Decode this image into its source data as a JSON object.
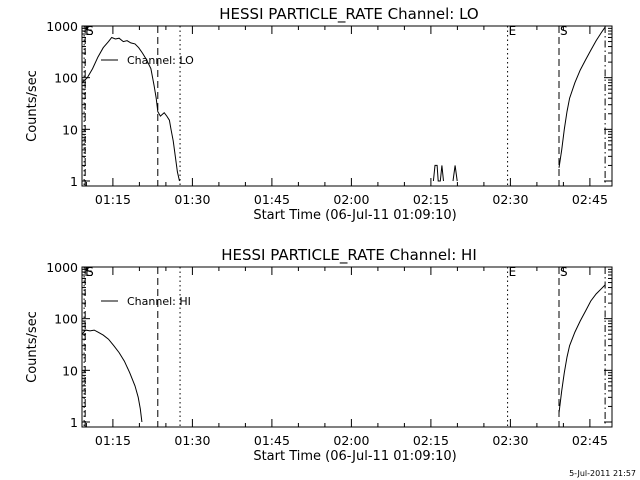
{
  "timestamp": "5-Jul-2011 21:57",
  "chart_data": [
    {
      "type": "line",
      "title": "HESSI PARTICLE_RATE Channel: LO",
      "xlabel": "Start Time (06-Jul-11 01:09:10)",
      "ylabel": "Counts/sec",
      "x_unit": "minutes after 01:09:10",
      "xlim": [
        0,
        100
      ],
      "ylim": [
        0.8,
        1000
      ],
      "yscale": "log",
      "x_ticks": [
        {
          "value": 5.83,
          "label": "01:15"
        },
        {
          "value": 20.83,
          "label": "01:30"
        },
        {
          "value": 35.83,
          "label": "01:45"
        },
        {
          "value": 50.83,
          "label": "02:00"
        },
        {
          "value": 65.83,
          "label": "02:15"
        },
        {
          "value": 80.83,
          "label": "02:30"
        },
        {
          "value": 95.83,
          "label": "02:45"
        }
      ],
      "y_ticks": [
        {
          "value": 1,
          "label": "1"
        },
        {
          "value": 10,
          "label": "10"
        },
        {
          "value": 100,
          "label": "100"
        },
        {
          "value": 1000,
          "label": "1000"
        }
      ],
      "grid": false,
      "legend": {
        "placement": "top-left",
        "entries": [
          "Channel: LO"
        ]
      },
      "markers": [
        {
          "x": 0.4,
          "style": "dotted",
          "label": "E"
        },
        {
          "x": 0.6,
          "style": "dashed",
          "label": "S"
        },
        {
          "x": 14.3,
          "style": "dashed",
          "label": ""
        },
        {
          "x": 18.5,
          "style": "dotted",
          "label": ""
        },
        {
          "x": 80.3,
          "style": "dotted",
          "label": "E"
        },
        {
          "x": 90.0,
          "style": "dashed",
          "label": "S"
        },
        {
          "x": 98.7,
          "style": "dashdot",
          "label": ""
        }
      ],
      "series": [
        {
          "name": "Channel: LO",
          "segments": [
            [
              [
                0.0,
                80
              ],
              [
                1.0,
                100
              ],
              [
                2.0,
                150
              ],
              [
                3.0,
                250
              ],
              [
                4.0,
                380
              ],
              [
                5.0,
                500
              ],
              [
                5.6,
                600
              ],
              [
                6.3,
                560
              ],
              [
                7.0,
                580
              ],
              [
                7.8,
                500
              ],
              [
                8.5,
                520
              ],
              [
                9.2,
                470
              ],
              [
                10.0,
                450
              ],
              [
                10.7,
                380
              ],
              [
                11.4,
                300
              ],
              [
                12.2,
                220
              ],
              [
                13.0,
                150
              ],
              [
                13.6,
                70
              ],
              [
                14.0,
                40
              ],
              [
                14.3,
                22
              ],
              [
                14.8,
                18
              ],
              [
                15.5,
                21
              ],
              [
                16.0,
                18
              ],
              [
                16.5,
                15
              ],
              [
                16.8,
                10
              ],
              [
                17.2,
                6
              ],
              [
                17.6,
                3
              ],
              [
                18.0,
                1.5
              ],
              [
                18.4,
                1
              ]
            ],
            [
              [
                66.3,
                1
              ],
              [
                66.6,
                2
              ],
              [
                67.0,
                2
              ],
              [
                67.2,
                1
              ],
              [
                67.6,
                1
              ],
              [
                67.9,
                2
              ],
              [
                68.2,
                1
              ]
            ],
            [
              [
                70.0,
                1
              ],
              [
                70.4,
                2
              ],
              [
                70.8,
                1
              ]
            ],
            [
              [
                90.0,
                1.8
              ],
              [
                90.5,
                4
              ],
              [
                91.0,
                10
              ],
              [
                91.5,
                22
              ],
              [
                92.0,
                40
              ],
              [
                93.0,
                80
              ],
              [
                94.0,
                140
              ],
              [
                95.0,
                220
              ],
              [
                96.0,
                340
              ],
              [
                97.0,
                520
              ],
              [
                98.0,
                750
              ],
              [
                98.7,
                950
              ]
            ]
          ]
        }
      ]
    },
    {
      "type": "line",
      "title": "HESSI PARTICLE_RATE Channel: HI",
      "xlabel": "Start Time (06-Jul-11 01:09:10)",
      "ylabel": "Counts/sec",
      "x_unit": "minutes after 01:09:10",
      "xlim": [
        0,
        100
      ],
      "ylim": [
        0.8,
        1000
      ],
      "yscale": "log",
      "x_ticks": [
        {
          "value": 5.83,
          "label": "01:15"
        },
        {
          "value": 20.83,
          "label": "01:30"
        },
        {
          "value": 35.83,
          "label": "01:45"
        },
        {
          "value": 50.83,
          "label": "02:00"
        },
        {
          "value": 65.83,
          "label": "02:15"
        },
        {
          "value": 80.83,
          "label": "02:30"
        },
        {
          "value": 95.83,
          "label": "02:45"
        }
      ],
      "y_ticks": [
        {
          "value": 1,
          "label": "1"
        },
        {
          "value": 10,
          "label": "10"
        },
        {
          "value": 100,
          "label": "100"
        },
        {
          "value": 1000,
          "label": "1000"
        }
      ],
      "grid": false,
      "legend": {
        "placement": "top-left",
        "entries": [
          "Channel: HI"
        ]
      },
      "markers": [
        {
          "x": 0.4,
          "style": "dotted",
          "label": "E"
        },
        {
          "x": 0.6,
          "style": "dashed",
          "label": "S"
        },
        {
          "x": 14.3,
          "style": "dashed",
          "label": ""
        },
        {
          "x": 18.5,
          "style": "dotted",
          "label": ""
        },
        {
          "x": 80.3,
          "style": "dotted",
          "label": "E"
        },
        {
          "x": 90.0,
          "style": "dashed",
          "label": "S"
        },
        {
          "x": 98.7,
          "style": "dashdot",
          "label": ""
        }
      ],
      "series": [
        {
          "name": "Channel: HI",
          "segments": [
            [
              [
                0.0,
                50
              ],
              [
                0.7,
                60
              ],
              [
                1.5,
                58
              ],
              [
                2.3,
                60
              ],
              [
                3.0,
                55
              ],
              [
                4.0,
                48
              ],
              [
                5.0,
                40
              ],
              [
                6.0,
                30
              ],
              [
                7.0,
                22
              ],
              [
                8.0,
                15
              ],
              [
                9.0,
                9
              ],
              [
                10.0,
                5
              ],
              [
                10.6,
                3
              ],
              [
                11.0,
                1.8
              ],
              [
                11.3,
                1
              ]
            ],
            [
              [
                90.0,
                1.5
              ],
              [
                90.5,
                4
              ],
              [
                91.0,
                9
              ],
              [
                91.5,
                18
              ],
              [
                92.0,
                30
              ],
              [
                93.0,
                55
              ],
              [
                94.0,
                90
              ],
              [
                95.0,
                140
              ],
              [
                96.0,
                220
              ],
              [
                97.0,
                300
              ],
              [
                98.0,
                380
              ],
              [
                98.7,
                450
              ]
            ]
          ]
        }
      ]
    }
  ]
}
